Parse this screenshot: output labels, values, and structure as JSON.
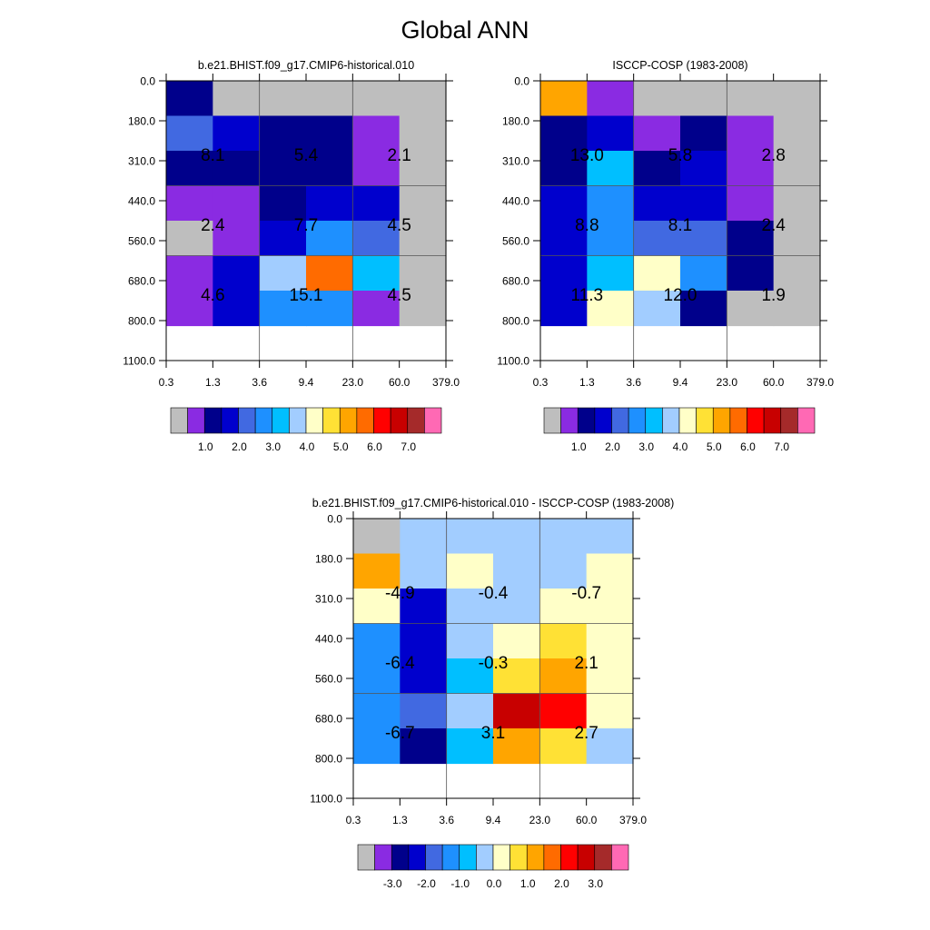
{
  "title": "Global ANN",
  "cell_colors": {
    "A": "#bebebe",
    "P": "#8a2be2",
    "N": "#00008b",
    "B": "#0000cd",
    "R": "#4169e1",
    "D": "#1e90ff",
    "S": "#00bfff",
    "L": "#a2cdff",
    "Y": "#ffffc8",
    "G": "#ffe135",
    "O": "#ffa500",
    "T": "#ff6b00",
    "Re": "#ff0000",
    "C": "#c80000",
    "M": "#a52a2a",
    "K": "#ff69b4"
  },
  "colorbar_colors": [
    "#bebebe",
    "#8a2be2",
    "#00008b",
    "#0000cd",
    "#4169e1",
    "#1e90ff",
    "#00bfff",
    "#a2cdff",
    "#ffffc8",
    "#ffe135",
    "#ffa500",
    "#ff6b00",
    "#ff0000",
    "#c80000",
    "#a52a2a",
    "#ff69b4"
  ],
  "chart_data": [
    {
      "type": "heatmap",
      "title": "b.e21.BHIST.f09_g17.CMIP6-historical.010",
      "x_ticks": [
        "0.3",
        "1.3",
        "3.6",
        "9.4",
        "23.0",
        "60.0",
        "379.0"
      ],
      "y_ticks": [
        "0.0",
        "180.0",
        "310.0",
        "440.0",
        "560.0",
        "680.0",
        "800.0",
        "1100.0"
      ],
      "cells": [
        [
          "N",
          "A",
          "A",
          "A",
          "A",
          "A"
        ],
        [
          "R",
          "B",
          "N",
          "N",
          "P",
          "A"
        ],
        [
          "N",
          "N",
          "N",
          "N",
          "P",
          "A"
        ],
        [
          "P",
          "P",
          "N",
          "B",
          "B",
          "A"
        ],
        [
          "A",
          "P",
          "B",
          "D",
          "R",
          "A"
        ],
        [
          "P",
          "B",
          "L",
          "T",
          "S",
          "A"
        ],
        [
          "P",
          "B",
          "D",
          "D",
          "P",
          "A"
        ]
      ],
      "group_labels": [
        {
          "row": 1,
          "col": 0,
          "text": "8.1"
        },
        {
          "row": 1,
          "col": 1,
          "text": "5.4"
        },
        {
          "row": 1,
          "col": 2,
          "text": "2.1"
        },
        {
          "row": 2,
          "col": 0,
          "text": "2.4"
        },
        {
          "row": 2,
          "col": 1,
          "text": "7.7"
        },
        {
          "row": 2,
          "col": 2,
          "text": "4.5"
        },
        {
          "row": 3,
          "col": 0,
          "text": "4.6"
        },
        {
          "row": 3,
          "col": 1,
          "text": "15.1"
        },
        {
          "row": 3,
          "col": 2,
          "text": "4.5"
        }
      ],
      "colorbar_labels": [
        "1.0",
        "2.0",
        "3.0",
        "4.0",
        "5.0",
        "6.0",
        "7.0"
      ]
    },
    {
      "type": "heatmap",
      "title": "ISCCP-COSP (1983-2008)",
      "x_ticks": [
        "0.3",
        "1.3",
        "3.6",
        "9.4",
        "23.0",
        "60.0",
        "379.0"
      ],
      "y_ticks": [
        "0.0",
        "180.0",
        "310.0",
        "440.0",
        "560.0",
        "680.0",
        "800.0",
        "1100.0"
      ],
      "cells": [
        [
          "O",
          "P",
          "A",
          "A",
          "A",
          "A"
        ],
        [
          "N",
          "B",
          "P",
          "N",
          "P",
          "A"
        ],
        [
          "N",
          "S",
          "N",
          "B",
          "P",
          "A"
        ],
        [
          "B",
          "D",
          "B",
          "B",
          "P",
          "A"
        ],
        [
          "B",
          "D",
          "R",
          "R",
          "N",
          "A"
        ],
        [
          "B",
          "S",
          "Y",
          "D",
          "N",
          "A"
        ],
        [
          "B",
          "Y",
          "L",
          "N",
          "A",
          "A"
        ]
      ],
      "group_labels": [
        {
          "row": 1,
          "col": 0,
          "text": "13.0"
        },
        {
          "row": 1,
          "col": 1,
          "text": "5.8"
        },
        {
          "row": 1,
          "col": 2,
          "text": "2.8"
        },
        {
          "row": 2,
          "col": 0,
          "text": "8.8"
        },
        {
          "row": 2,
          "col": 1,
          "text": "8.1"
        },
        {
          "row": 2,
          "col": 2,
          "text": "2.4"
        },
        {
          "row": 3,
          "col": 0,
          "text": "11.3"
        },
        {
          "row": 3,
          "col": 1,
          "text": "12.0"
        },
        {
          "row": 3,
          "col": 2,
          "text": "1.9"
        }
      ],
      "colorbar_labels": [
        "1.0",
        "2.0",
        "3.0",
        "4.0",
        "5.0",
        "6.0",
        "7.0"
      ]
    },
    {
      "type": "heatmap",
      "title": "b.e21.BHIST.f09_g17.CMIP6-historical.010 - ISCCP-COSP (1983-2008)",
      "x_ticks": [
        "0.3",
        "1.3",
        "3.6",
        "9.4",
        "23.0",
        "60.0",
        "379.0"
      ],
      "y_ticks": [
        "0.0",
        "180.0",
        "310.0",
        "440.0",
        "560.0",
        "680.0",
        "800.0",
        "1100.0"
      ],
      "cells": [
        [
          "A",
          "L",
          "L",
          "L",
          "L",
          "L"
        ],
        [
          "O",
          "L",
          "Y",
          "L",
          "L",
          "Y"
        ],
        [
          "Y",
          "B",
          "L",
          "L",
          "Y",
          "Y"
        ],
        [
          "D",
          "B",
          "L",
          "Y",
          "G",
          "Y"
        ],
        [
          "D",
          "B",
          "S",
          "G",
          "O",
          "Y"
        ],
        [
          "D",
          "R",
          "L",
          "C",
          "Re",
          "Y"
        ],
        [
          "D",
          "N",
          "S",
          "O",
          "G",
          "L"
        ]
      ],
      "group_labels": [
        {
          "row": 1,
          "col": 0,
          "text": "-4.9"
        },
        {
          "row": 1,
          "col": 1,
          "text": "-0.4"
        },
        {
          "row": 1,
          "col": 2,
          "text": "-0.7"
        },
        {
          "row": 2,
          "col": 0,
          "text": "-6.4"
        },
        {
          "row": 2,
          "col": 1,
          "text": "-0.3"
        },
        {
          "row": 2,
          "col": 2,
          "text": "2.1"
        },
        {
          "row": 3,
          "col": 0,
          "text": "-6.7"
        },
        {
          "row": 3,
          "col": 1,
          "text": "3.1"
        },
        {
          "row": 3,
          "col": 2,
          "text": "2.7"
        }
      ],
      "colorbar_labels": [
        "-3.0",
        "-2.0",
        "-1.0",
        "0.0",
        "1.0",
        "2.0",
        "3.0"
      ]
    }
  ]
}
